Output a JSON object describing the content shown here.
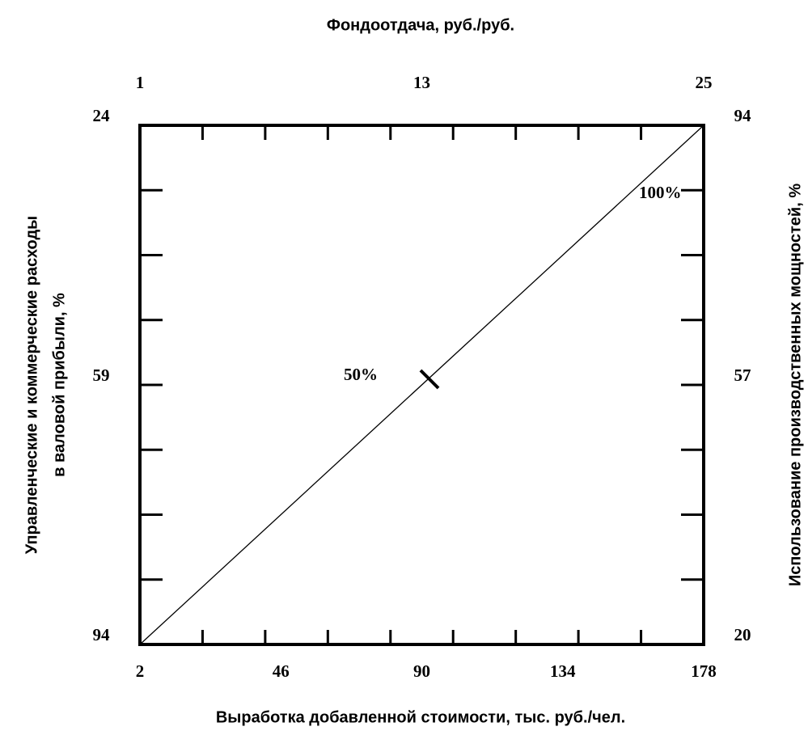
{
  "title_top": "Фондоотдача, руб./руб.",
  "axes": {
    "bottom": {
      "label": "Выработка  добавленной  стоимости, тыс. руб./чел.",
      "ticks": [
        2,
        46,
        90,
        134,
        178
      ]
    },
    "top": {
      "ticks": [
        1,
        13,
        25
      ]
    },
    "left": {
      "label_lines": [
        "Управленческие и  коммерческие  расходы",
        "в валовой прибыли,  %"
      ],
      "ticks": [
        24,
        59,
        94
      ]
    },
    "right": {
      "label": "Использование производственных мощностей, %",
      "ticks": [
        94,
        57,
        20
      ]
    }
  },
  "annotations": [
    "100%",
    "50%"
  ]
}
